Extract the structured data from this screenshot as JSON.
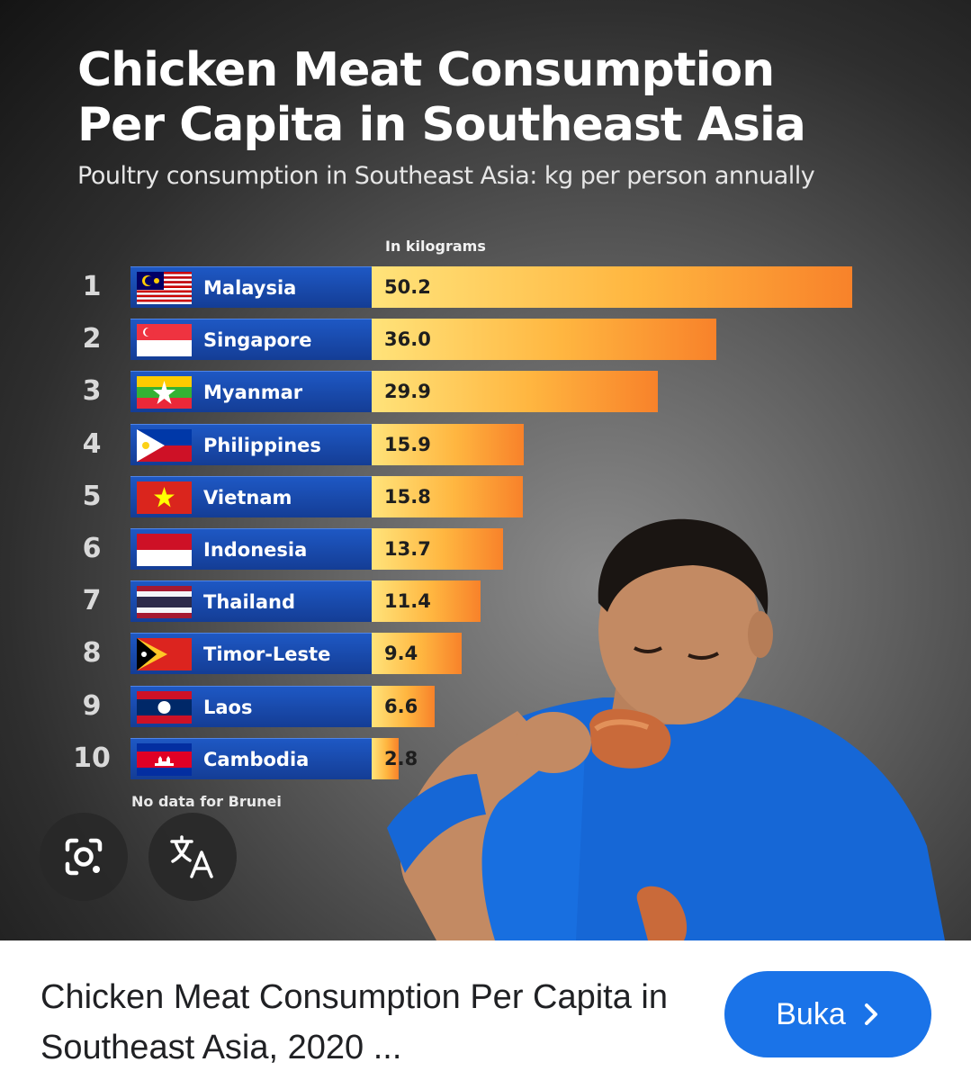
{
  "infographic": {
    "title_line1": "Chicken Meat Consumption",
    "title_line2": "Per Capita in Southeast Asia",
    "subtitle": "Poultry consumption in Southeast Asia: kg per person annually",
    "unit_label": "In kilograms",
    "footnote": "No data for Brunei"
  },
  "chart_data": {
    "type": "bar",
    "orientation": "horizontal",
    "title": "Chicken Meat Consumption Per Capita in Southeast Asia",
    "subtitle": "Poultry consumption in Southeast Asia: kg per person annually",
    "ylabel": "In kilograms",
    "ranks": [
      "1",
      "2",
      "3",
      "4",
      "5",
      "6",
      "7",
      "8",
      "9",
      "10"
    ],
    "categories": [
      "Malaysia",
      "Singapore",
      "Myanmar",
      "Philippines",
      "Vietnam",
      "Indonesia",
      "Thailand",
      "Timor-Leste",
      "Laos",
      "Cambodia"
    ],
    "values": [
      50.2,
      36.0,
      29.9,
      15.9,
      15.8,
      13.7,
      11.4,
      9.4,
      6.6,
      2.8
    ],
    "value_labels": [
      "50.2",
      "36.0",
      "29.9",
      "15.9",
      "15.8",
      "13.7",
      "11.4",
      "9.4",
      "6.6",
      "2.8"
    ],
    "flags": [
      "malaysia-flag",
      "singapore-flag",
      "myanmar-flag",
      "philippines-flag",
      "vietnam-flag",
      "indonesia-flag",
      "thailand-flag",
      "timor-leste-flag",
      "laos-flag",
      "cambodia-flag"
    ],
    "label_color": "#1a4cb0",
    "bar_colors": [
      "#ffe37a",
      "#ffb640",
      "#f8822a"
    ]
  },
  "overlay_buttons": {
    "lens_icon": "google-lens-icon",
    "translate_icon": "translate-icon"
  },
  "result": {
    "caption": "Chicken Meat Consumption Per Capita in Southeast Asia, 2020 ...",
    "open_button_label": "Buka",
    "open_button_icon": "chevron-right-icon",
    "accent_color": "#1a73e8"
  }
}
